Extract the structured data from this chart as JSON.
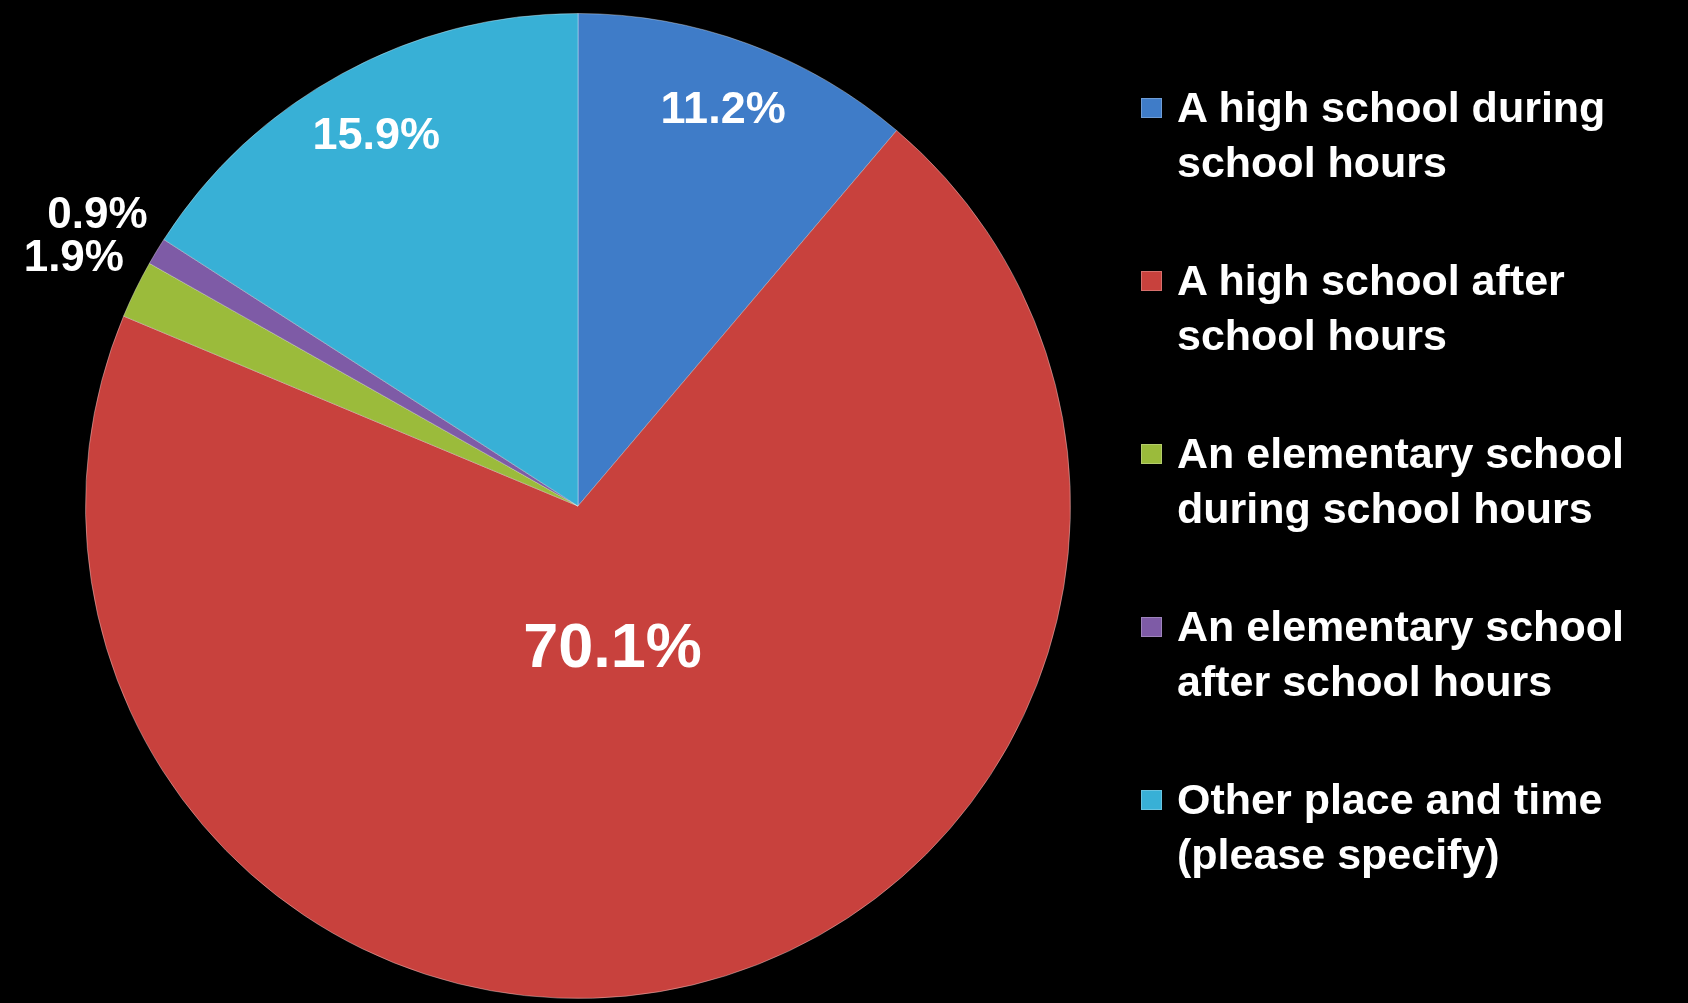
{
  "chart_data": {
    "type": "pie",
    "categories": [
      "A high school during school hours",
      "A high school after school hours",
      "An elementary school during school hours",
      "An elementary school after school hours",
      "Other place and time (please specify)"
    ],
    "values": [
      11.2,
      70.1,
      1.9,
      0.9,
      15.9
    ],
    "colors": [
      "#3f7cc8",
      "#c8413d",
      "#9bbb3b",
      "#7e5ba6",
      "#38b0d6"
    ],
    "value_labels": [
      "11.2%",
      "70.1%",
      "1.9%",
      "0.9%",
      "15.9%"
    ],
    "legend": "right"
  }
}
